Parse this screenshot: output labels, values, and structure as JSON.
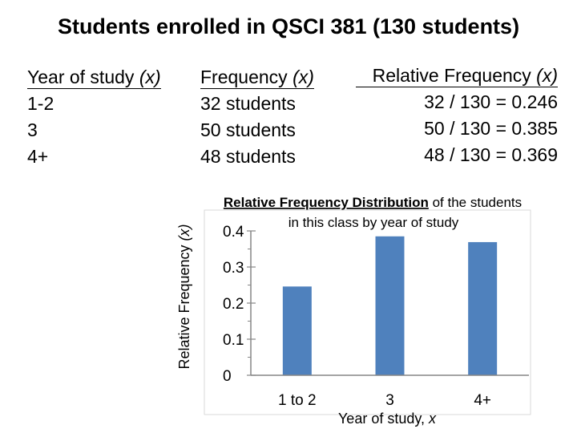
{
  "title": "Students enrolled in QSCI 381 (130 students)",
  "table": {
    "headers": {
      "year": "Year of study",
      "freq": "Frequency",
      "rel": "Relative Frequency",
      "var": "(x)"
    },
    "rows": [
      {
        "year": "1-2",
        "freq": "32 students",
        "rel": "32 / 130 = 0.246"
      },
      {
        "year": "3",
        "freq": "50 students",
        "rel": "50 / 130 = 0.385"
      },
      {
        "year": "4+",
        "freq": "48 students",
        "rel": "48 / 130 = 0.369"
      }
    ]
  },
  "chart_data": {
    "type": "bar",
    "title_bold": "Relative Frequency Distribution",
    "title_rest": " of the students",
    "title_line2": "in this class by year of study",
    "categories": [
      "1 to 2",
      "3",
      "4+"
    ],
    "values": [
      0.246,
      0.385,
      0.369
    ],
    "xlabel": "Year of study, ",
    "xlabel_var": "x",
    "ylabel": "Relative Frequency ",
    "ylabel_var": "(x)",
    "yticks": [
      {
        "value": 0,
        "label": "0"
      },
      {
        "value": 0.1,
        "label": "0.1"
      },
      {
        "value": 0.2,
        "label": "0.2"
      },
      {
        "value": 0.3,
        "label": "0.3"
      },
      {
        "value": 0.4,
        "label": "0.4"
      }
    ],
    "ylim": [
      0,
      0.4
    ],
    "bar_color": "#4F81BD",
    "grid": false,
    "legend": "none"
  }
}
